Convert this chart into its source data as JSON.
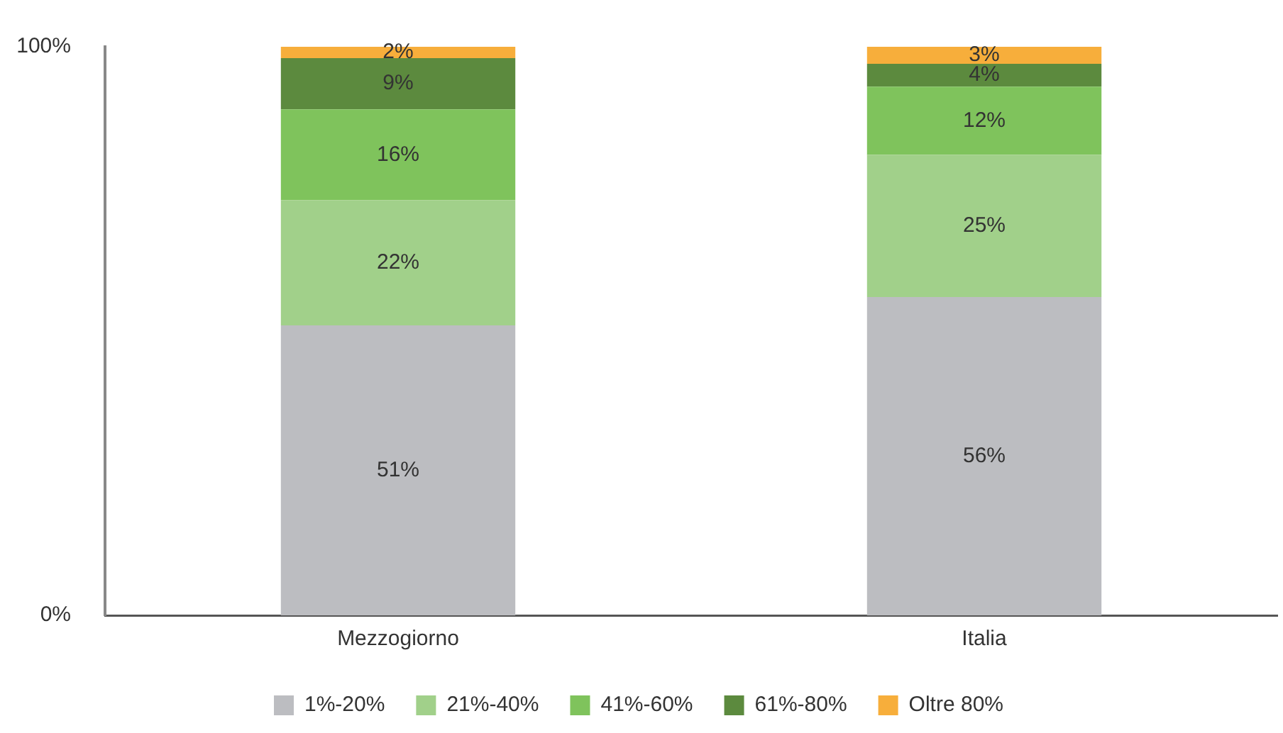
{
  "chart_data": {
    "type": "bar",
    "stacked": true,
    "categories": [
      "Mezzogiorno",
      "Italia"
    ],
    "series": [
      {
        "name": "1%-20%",
        "color": "#bcbdc1",
        "values": [
          51,
          56
        ],
        "value_labels": [
          "51%",
          "56%"
        ]
      },
      {
        "name": "21%-40%",
        "color": "#a1d08a",
        "values": [
          22,
          25
        ],
        "value_labels": [
          "22%",
          "25%"
        ]
      },
      {
        "name": "41%-60%",
        "color": "#7fc35c",
        "values": [
          16,
          12
        ],
        "value_labels": [
          "16%",
          "12%"
        ]
      },
      {
        "name": "61%-80%",
        "color": "#5c8a3e",
        "values": [
          9,
          4
        ],
        "value_labels": [
          "9%",
          "4%"
        ]
      },
      {
        "name": "Oltre 80%",
        "color": "#f7ae3b",
        "values": [
          2,
          3
        ],
        "value_labels": [
          "2%",
          "3%"
        ]
      }
    ],
    "ylim": [
      0,
      100
    ],
    "yticks": [
      {
        "value": 0,
        "label": "0%"
      },
      {
        "value": 100,
        "label": "100%"
      }
    ],
    "legend": "bottom"
  }
}
